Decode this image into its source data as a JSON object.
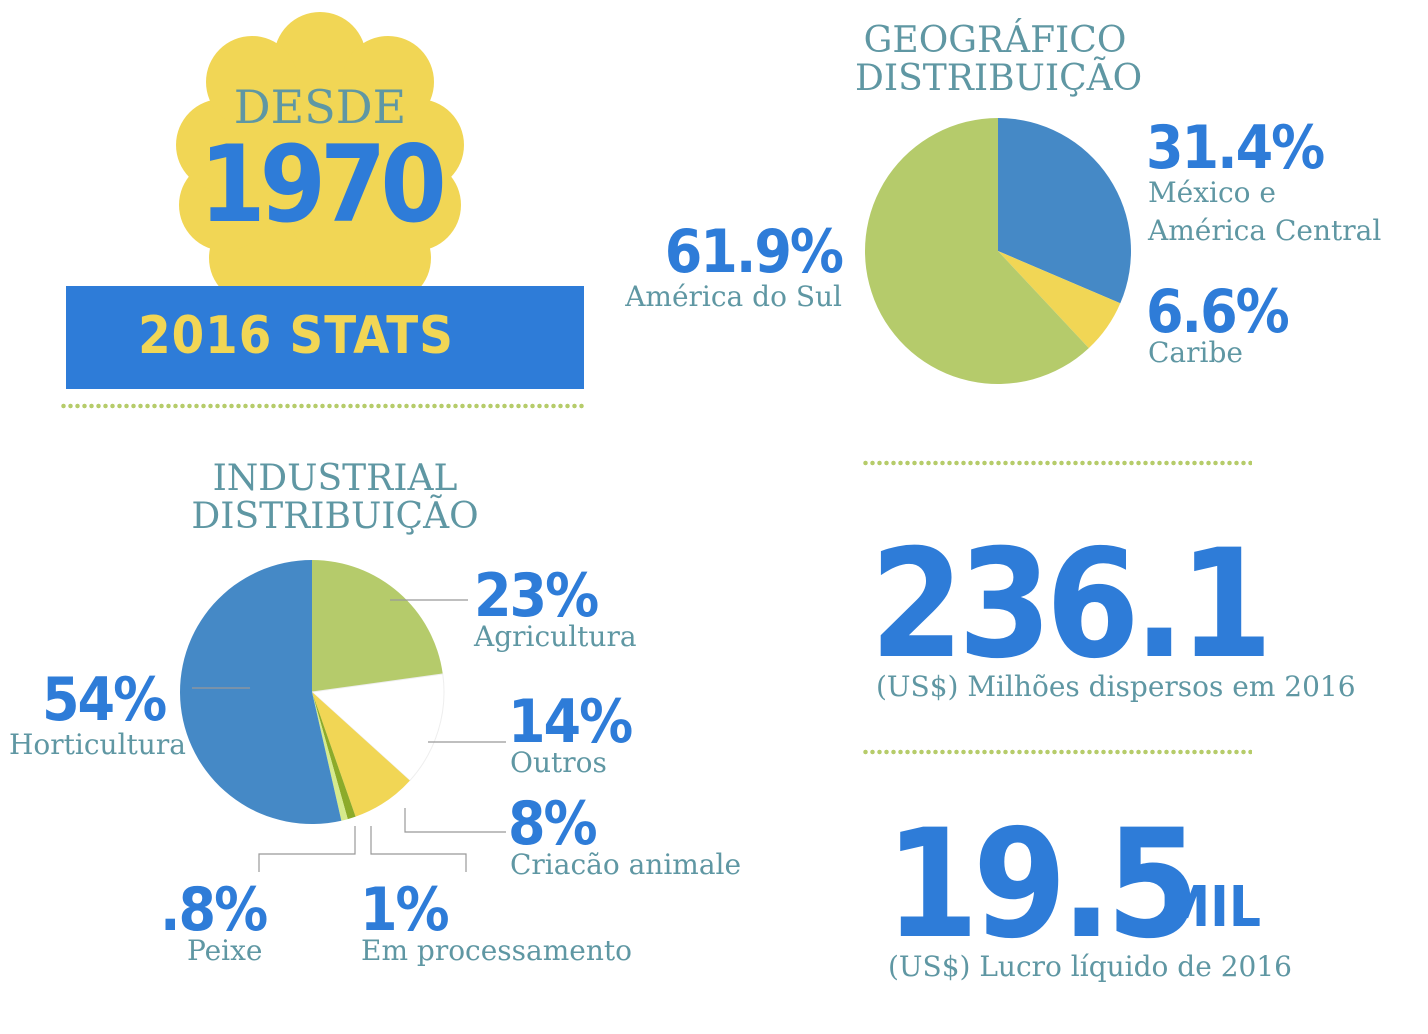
{
  "colors": {
    "blue": "#2e7cd8",
    "teal_text": "#5f97a3",
    "yellow": "#f1d655",
    "green": "#b5cb6b",
    "pie_blue": "#4589c6",
    "dark_green": "#8cab2a",
    "light_green": "#d6ea8c",
    "dots": "#b6cc6a"
  },
  "badge": {
    "desde": "DESDE",
    "year": "1970",
    "banner": "2016 STATS"
  },
  "stats": [
    {
      "value": "236.1",
      "suffix": "",
      "caption": "(US$) Milhões dispersos em 2016"
    },
    {
      "value": "19.5",
      "suffix": "MIL",
      "caption": "(US$) Lucro líquido de 2016"
    }
  ],
  "chart_data": [
    {
      "type": "pie",
      "title": "GEOGRÁFICO DISTRIBUIÇÃO",
      "title_lines": [
        "GEOGRÁFICO",
        "DISTRIBUIÇÃO"
      ],
      "slices": [
        {
          "label_line1": "México e",
          "label_line2": "América Central",
          "pct_text": "31.4%",
          "value": 31.4,
          "color": "#4589c6"
        },
        {
          "label_line1": "Caribe",
          "label_line2": "",
          "pct_text": "6.6%",
          "value": 6.6,
          "color": "#f1d655"
        },
        {
          "label_line1": "América do Sul",
          "label_line2": "",
          "pct_text": "61.9%",
          "value": 61.9,
          "color": "#b5cb6b"
        }
      ]
    },
    {
      "type": "pie",
      "title": "INDUSTRIAL DISTRIBUIÇÃO",
      "title_lines": [
        "INDUSTRIAL",
        "DISTRIBUIÇÃO"
      ],
      "slices": [
        {
          "label": "Agricultura",
          "pct_text": "23%",
          "value": 23,
          "color": "#b5cb6b"
        },
        {
          "label": "Outros",
          "pct_text": "14%",
          "value": 14,
          "color": "#ffffff"
        },
        {
          "label": "Criacão animale",
          "pct_text": "8%",
          "value": 8,
          "color": "#f1d655"
        },
        {
          "label": "Em processamento",
          "pct_text": "1%",
          "value": 1,
          "color": "#8cab2a"
        },
        {
          "label": "Peixe",
          "pct_text": ".8%",
          "value": 0.8,
          "color": "#d6ea8c"
        },
        {
          "label": "Horticultura",
          "pct_text": "54%",
          "value": 54,
          "color": "#4589c6"
        }
      ]
    }
  ]
}
